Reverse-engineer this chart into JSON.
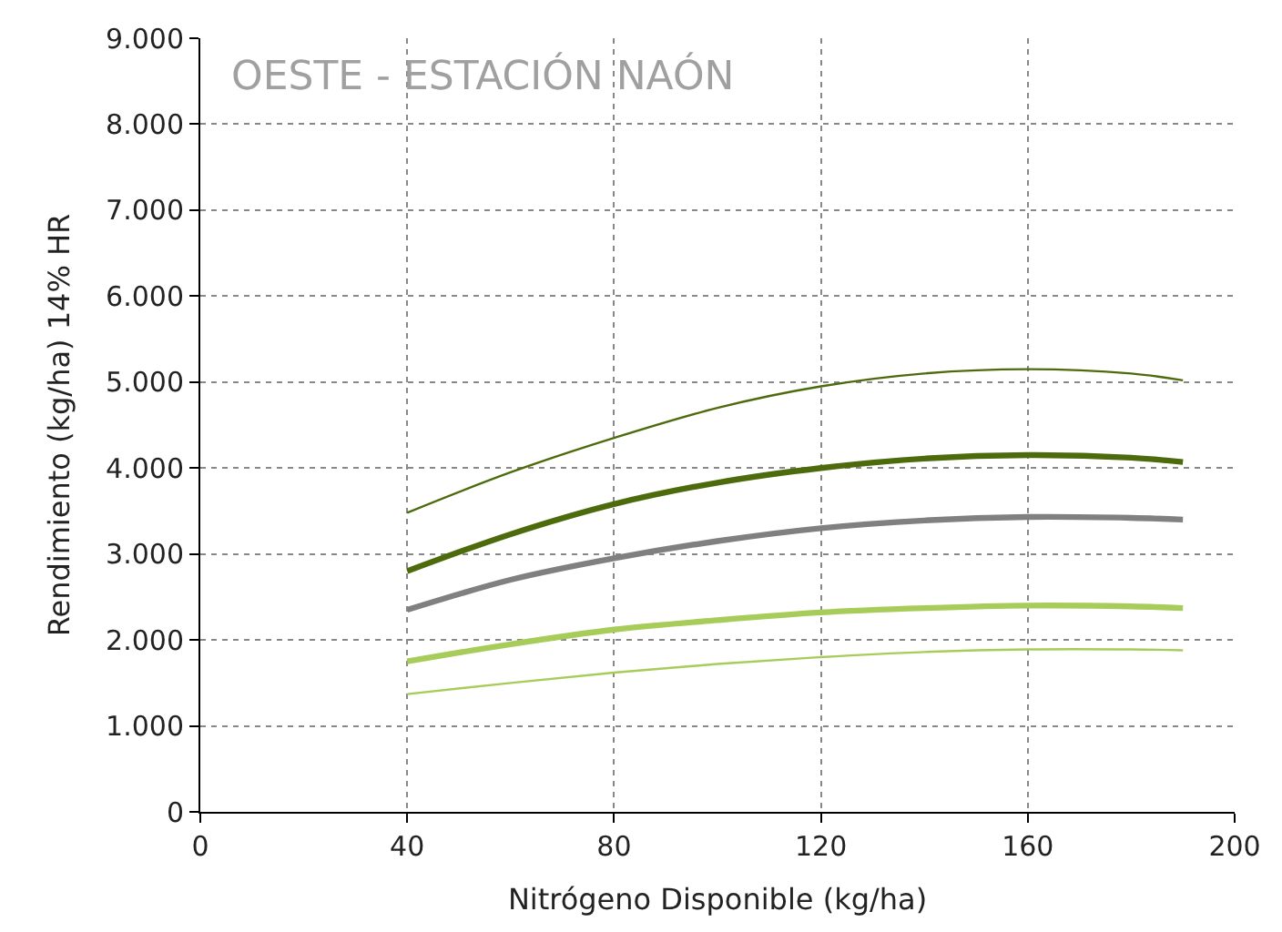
{
  "chart_data": {
    "type": "line",
    "title": "OESTE - ESTACIÓN NAÓN",
    "xlabel": "Nitrógeno Disponible (kg/ha)",
    "ylabel": "Rendimiento (kg/ha) 14% HR",
    "x": [
      40,
      60,
      80,
      100,
      120,
      140,
      160,
      180,
      190
    ],
    "series": [
      {
        "color": "#4d6b0c",
        "values": [
          3480,
          3950,
          4350,
          4700,
          4950,
          5100,
          5150,
          5100,
          5020
        ]
      },
      {
        "color": "#4d6b0c",
        "values": [
          2800,
          3230,
          3580,
          3830,
          4000,
          4110,
          4150,
          4120,
          4070
        ]
      },
      {
        "color": "#808080",
        "values": [
          2350,
          2700,
          2950,
          3150,
          3300,
          3390,
          3430,
          3420,
          3400
        ]
      },
      {
        "color": "#a8cc5a",
        "values": [
          1750,
          1950,
          2120,
          2230,
          2320,
          2370,
          2400,
          2390,
          2370
        ]
      },
      {
        "color": "#a8cc5a",
        "values": [
          1370,
          1500,
          1620,
          1720,
          1800,
          1860,
          1890,
          1890,
          1880
        ]
      }
    ],
    "xlim": [
      0,
      200
    ],
    "xticks": [
      0,
      40,
      80,
      120,
      160,
      200
    ],
    "ylim": [
      0,
      9000
    ],
    "yticks": [
      {
        "value": 0,
        "label": "0"
      },
      {
        "value": 1000,
        "label": "1.000"
      },
      {
        "value": 2000,
        "label": "2.000"
      },
      {
        "value": 3000,
        "label": "3.000"
      },
      {
        "value": 4000,
        "label": "4.000"
      },
      {
        "value": 5000,
        "label": "5.000"
      },
      {
        "value": 6000,
        "label": "6.000"
      },
      {
        "value": 7000,
        "label": "7.000"
      },
      {
        "value": 8000,
        "label": "8.000"
      },
      {
        "value": 9000,
        "label": "9.000"
      }
    ],
    "grid": true,
    "line_style": "solid",
    "marker": "none"
  }
}
